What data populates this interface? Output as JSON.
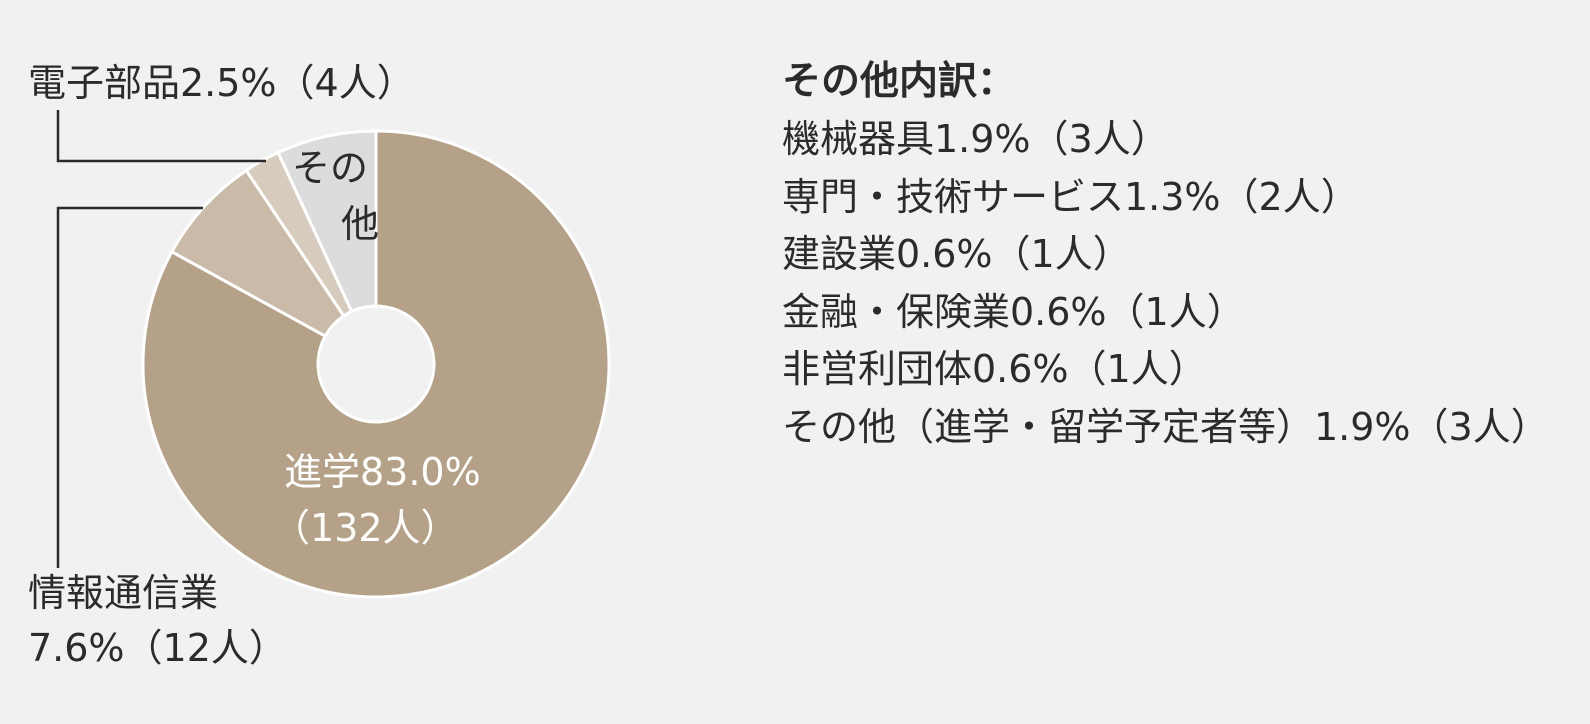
{
  "chart_data": {
    "type": "pie",
    "donut": true,
    "slices": [
      {
        "name": "進学",
        "percent": 83.0,
        "count": 132,
        "label_line1": "進学83.0%",
        "label_line2": "（132人）",
        "color": "#b5a187"
      },
      {
        "name": "情報通信業",
        "percent": 7.6,
        "count": 12,
        "label_line1": "情報通信業",
        "label_line2": "7.6%（12人）",
        "color": "#cabba8"
      },
      {
        "name": "電子部品",
        "percent": 2.5,
        "count": 4,
        "label_line1": "電子部品2.5%（4人）",
        "label_line2": "",
        "color": "#d6cbbd"
      },
      {
        "name": "その他",
        "percent": 6.9,
        "count": null,
        "label_line1": "その",
        "label_line2": "他",
        "color": "#dcdcdc"
      }
    ]
  },
  "breakdown": {
    "title": "その他内訳：",
    "items": [
      "機械器具1.9%（3人）",
      "専門・技術サービス1.3%（2人）",
      "建設業0.6%（1人）",
      "金融・保険業0.6%（1人）",
      "非営利団体0.6%（1人）",
      "その他（進学・留学予定者等）1.9%（3人）"
    ]
  }
}
